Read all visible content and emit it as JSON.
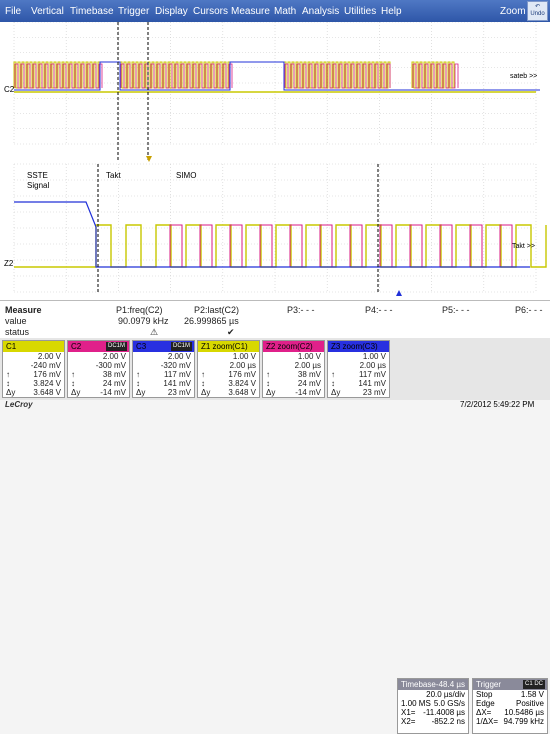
{
  "menu": {
    "items": [
      "File",
      "Vertical",
      "Timebase",
      "Trigger",
      "Display",
      "Cursors",
      "Measure",
      "Math",
      "Analysis",
      "Utilities",
      "Help"
    ],
    "zoom": "Zoom",
    "undo": "Undo"
  },
  "grid": {
    "top_labels": {
      "channel": "C2",
      "tag": "sateb >>"
    },
    "bottom_labels": {
      "channel": "Z2",
      "sste": "SSTE",
      "signal": "Signal",
      "takt": "Takt",
      "simo": "SIMO",
      "tag": "Takt >>"
    }
  },
  "measure": {
    "header": "Measure",
    "value_label": "value",
    "status_label": "status",
    "p1": {
      "name": "P1:freq(C2)",
      "value": "90.0979 kHz",
      "status": "⚠"
    },
    "p2": {
      "name": "P2:last(C2)",
      "value": "26.999865 µs",
      "status": "✔"
    },
    "p3": "P3:- - -",
    "p4": "P4:- - -",
    "p5": "P5:- - -",
    "p6": "P6:- - -"
  },
  "channels": [
    {
      "name": "C1",
      "badge": "",
      "color": "#d8d800",
      "rows": [
        [
          "",
          "2.00 V"
        ],
        [
          "",
          "-240 mV"
        ],
        [
          "↑",
          "176 mV"
        ],
        [
          "↕",
          "3.824 V"
        ],
        [
          "Δy",
          "3.648 V"
        ]
      ]
    },
    {
      "name": "C2",
      "badge": "DC1M",
      "color": "#e0208a",
      "rows": [
        [
          "",
          "2.00 V"
        ],
        [
          "",
          "-300 mV"
        ],
        [
          "↑",
          "38 mV"
        ],
        [
          "↕",
          "24 mV"
        ],
        [
          "Δy",
          "-14 mV"
        ]
      ]
    },
    {
      "name": "C3",
      "badge": "DC1M",
      "color": "#2830e0",
      "rows": [
        [
          "",
          "2.00 V"
        ],
        [
          "",
          "-320 mV"
        ],
        [
          "↑",
          "117 mV"
        ],
        [
          "↕",
          "141 mV"
        ],
        [
          "Δy",
          "23 mV"
        ]
      ]
    },
    {
      "name": "Z1 zoom(C1)",
      "badge": "",
      "color": "#d8d800",
      "rows": [
        [
          "",
          "1.00 V"
        ],
        [
          "",
          "2.00 µs"
        ],
        [
          "↑",
          "176 mV"
        ],
        [
          "↕",
          "3.824 V"
        ],
        [
          "Δy",
          "3.648 V"
        ]
      ]
    },
    {
      "name": "Z2 zoom(C2)",
      "badge": "",
      "color": "#e0208a",
      "rows": [
        [
          "",
          "1.00 V"
        ],
        [
          "",
          "2.00 µs"
        ],
        [
          "↑",
          "38 mV"
        ],
        [
          "↕",
          "24 mV"
        ],
        [
          "Δy",
          "-14 mV"
        ]
      ]
    },
    {
      "name": "Z3 zoom(C3)",
      "badge": "",
      "color": "#2830e0",
      "rows": [
        [
          "",
          "1.00 V"
        ],
        [
          "",
          "2.00 µs"
        ],
        [
          "↑",
          "117 mV"
        ],
        [
          "↕",
          "141 mV"
        ],
        [
          "Δy",
          "23 mV"
        ]
      ]
    }
  ],
  "timebase": {
    "label": "Timebase",
    "offset": "-48.4 µs",
    "rate": "20.0 µs/div",
    "samples": "1.00 MS",
    "srate": "5.0 GS/s",
    "x1l": "X1=",
    "x1": "-11.4008 µs",
    "x2l": "X2=",
    "x2": "-852.2 ns"
  },
  "trigger": {
    "label": "Trigger",
    "badge": "C1 DC",
    "mode": "Stop",
    "level": "1.58 V",
    "type": "Edge",
    "slope": "Positive",
    "dx": "ΔX=",
    "dxv": "10.5486 µs",
    "idx": "1/ΔX=",
    "idxv": "94.799 kHz"
  },
  "footer": {
    "brand": "LeCroy",
    "datetime": "7/2/2012 5:49:22 PM"
  },
  "colors": {
    "c1": "#c8c800",
    "c2": "#d81a85",
    "c3": "#2030d8",
    "menubar": "#3a62b4"
  }
}
